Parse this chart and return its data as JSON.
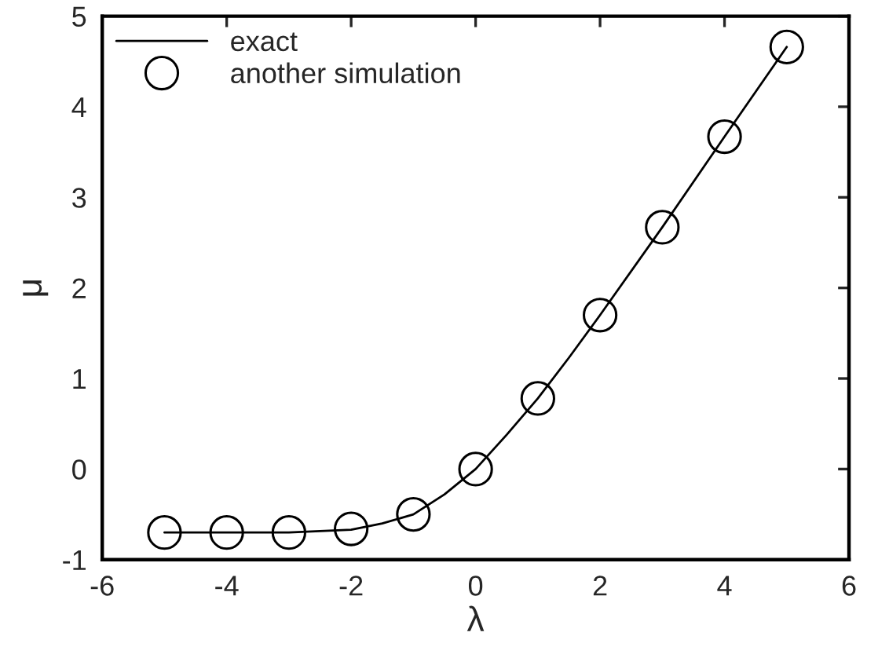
{
  "chart_data": {
    "type": "line",
    "xlabel": "λ",
    "ylabel": "μ",
    "xlim": [
      -6,
      6
    ],
    "ylim": [
      -1,
      5
    ],
    "xticks": [
      -6,
      -4,
      -2,
      0,
      2,
      4,
      6
    ],
    "yticks": [
      -1,
      0,
      1,
      2,
      3,
      4,
      5
    ],
    "grid": false,
    "legend": "top left",
    "series": [
      {
        "name": "exact",
        "color": "#000000",
        "line_style": "solid",
        "x": [
          -5,
          -4,
          -3,
          -2,
          -1.5,
          -1,
          -0.5,
          0,
          0.5,
          1,
          1.5,
          2,
          3,
          4,
          5
        ],
        "values": [
          -0.7,
          -0.7,
          -0.7,
          -0.67,
          -0.6,
          -0.5,
          -0.28,
          0,
          0.38,
          0.78,
          1.23,
          1.7,
          2.67,
          3.67,
          4.66
        ]
      },
      {
        "name": "another simulation",
        "type": "scatter",
        "color": "#000000",
        "marker": "circle",
        "x": [
          -5,
          -4,
          -3,
          -2,
          -1,
          0,
          1,
          2,
          3,
          4,
          5
        ],
        "values": [
          -0.7,
          -0.7,
          -0.7,
          -0.66,
          -0.5,
          0,
          0.78,
          1.7,
          2.67,
          3.67,
          4.66
        ]
      }
    ]
  }
}
